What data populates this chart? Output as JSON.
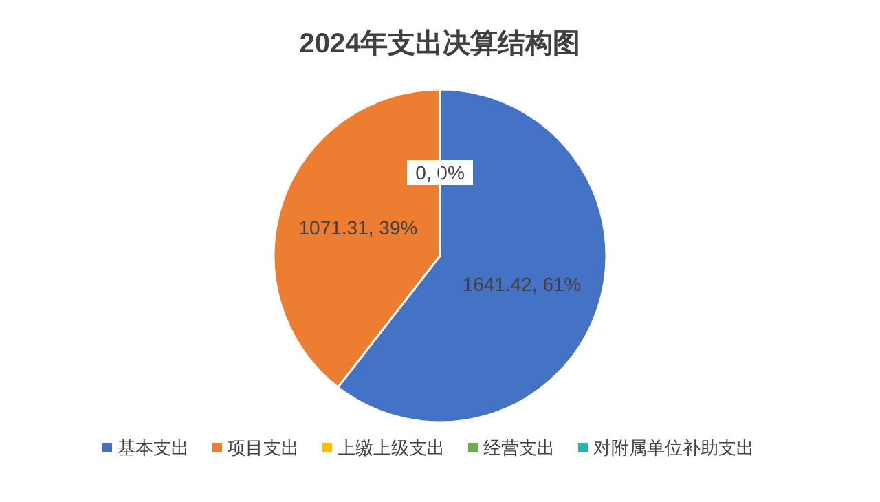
{
  "chart_data": {
    "type": "pie",
    "title": "2024年支出决算结构图",
    "categories": [
      "基本支出",
      "项目支出",
      "上缴上级支出",
      "经营支出",
      "对附属单位补助支出"
    ],
    "values": [
      1641.42,
      1071.31,
      0,
      0,
      0
    ],
    "colors": [
      "#4472c4",
      "#ed7d31",
      "#ffc000",
      "#70ad47",
      "#26b7a8"
    ],
    "value_labels": [
      "1641.42, 61%",
      "1071.31, 39%",
      "0, 0%",
      null,
      null
    ],
    "legend": "bottom"
  }
}
